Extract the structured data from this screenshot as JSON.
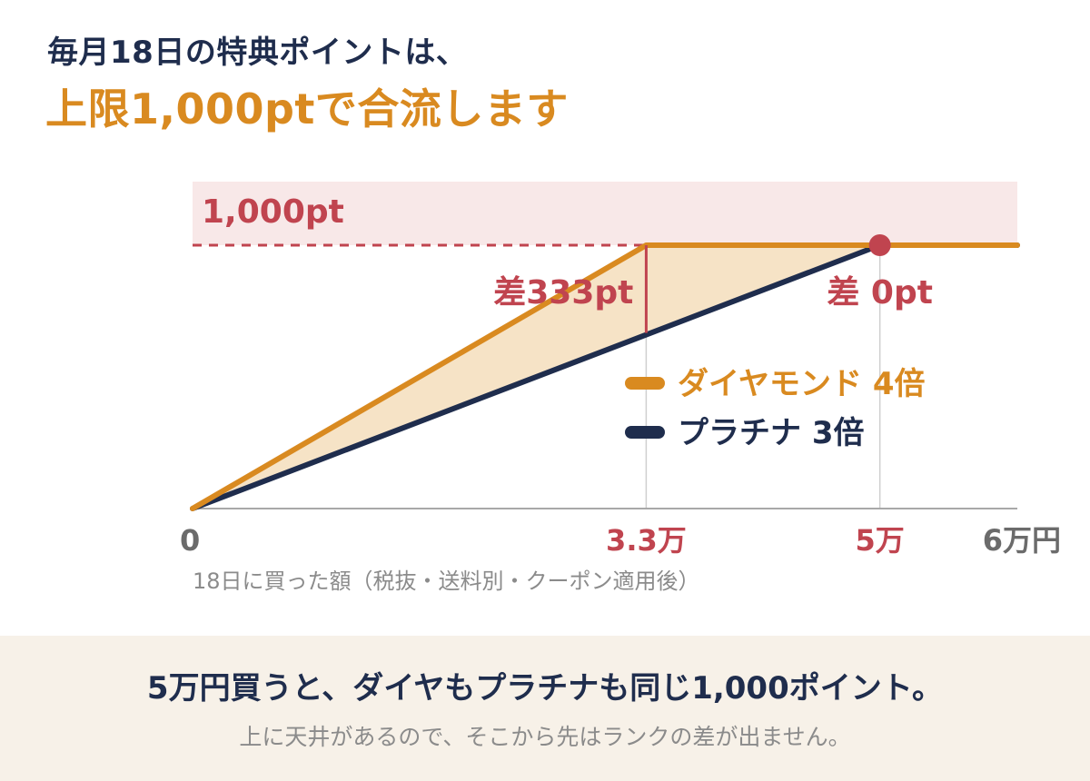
{
  "header": {
    "title_line1": "毎月18日の特典ポイントは、",
    "title_line2": "上限1,000ptで合流します"
  },
  "chart_data": {
    "type": "line",
    "x_unit": "万円",
    "xlim": [
      0,
      6
    ],
    "ylim": [
      0,
      1000
    ],
    "xlabel": "18日に買った額（税抜・送料別・クーポン適用後）",
    "x_tick_labels": [
      {
        "x": 0,
        "label": "0",
        "color": "#6b6b6b"
      },
      {
        "x": 3.3,
        "label": "3.3万",
        "color": "#c0444f"
      },
      {
        "x": 5,
        "label": "5万",
        "color": "#c0444f"
      },
      {
        "x": 6,
        "label": "6万円",
        "color": "#6b6b6b"
      }
    ],
    "cap": {
      "value": 1000,
      "label": "1,000pt",
      "color": "#c0444f"
    },
    "series": [
      {
        "name": "ダイヤモンド 4倍",
        "color": "#d98a20",
        "points": [
          [
            0,
            0
          ],
          [
            3.3,
            1000
          ],
          [
            6,
            1000
          ]
        ]
      },
      {
        "name": "プラチナ 3倍",
        "color": "#1f2d4d",
        "points": [
          [
            0,
            0
          ],
          [
            5,
            1000
          ],
          [
            6,
            1000
          ]
        ]
      }
    ],
    "fill_between_color": "#f6e3c6",
    "annotations": [
      {
        "label": "差333pt",
        "x": 3.3,
        "from": 667,
        "to": 1000,
        "color": "#c0444f"
      },
      {
        "label": "差 0pt",
        "x": 5,
        "at": 1000,
        "color": "#c0444f"
      }
    ],
    "grid": false,
    "legend_position": "right"
  },
  "footer": {
    "main": "5万円買うと、ダイヤもプラチナも同じ1,000ポイント。",
    "sub": "上に天井があるので、そこから先はランクの差が出ません。"
  }
}
